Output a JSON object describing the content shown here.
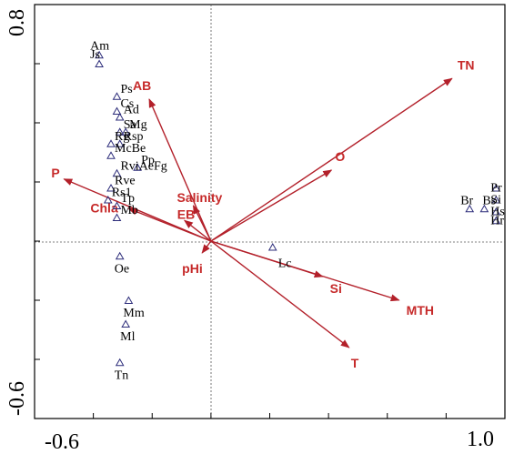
{
  "chart_data": {
    "type": "scatter",
    "title": "",
    "xlabel": "",
    "ylabel": "",
    "xlim": [
      -0.6,
      1.0
    ],
    "ylim": [
      -0.6,
      0.8
    ],
    "x_tick_labels": [
      "-0.6",
      "1.0"
    ],
    "y_tick_labels": [
      "0.8",
      "-0.6"
    ],
    "grid": false,
    "origin_lines": "dotted",
    "colors": {
      "arrow": "#b3202a",
      "species": "#2c2c7a",
      "env_label": "#c62a2a",
      "axis": "#000000"
    },
    "species": [
      {
        "label": "Am",
        "x": -0.38,
        "y": 0.63
      },
      {
        "label": "Js",
        "x": -0.38,
        "y": 0.6
      },
      {
        "label": "Ps",
        "x": -0.32,
        "y": 0.49
      },
      {
        "label": "Cs",
        "x": -0.32,
        "y": 0.44
      },
      {
        "label": "Ad",
        "x": -0.31,
        "y": 0.42
      },
      {
        "label": "Sa",
        "x": -0.31,
        "y": 0.37
      },
      {
        "label": "Mg",
        "x": -0.29,
        "y": 0.37
      },
      {
        "label": "Rg",
        "x": -0.34,
        "y": 0.33
      },
      {
        "label": "Rsp",
        "x": -0.31,
        "y": 0.33
      },
      {
        "label": "McBe",
        "x": -0.34,
        "y": 0.29
      },
      {
        "label": "Pp",
        "x": -0.25,
        "y": 0.25
      },
      {
        "label": "RviAeFg",
        "x": -0.32,
        "y": 0.23
      },
      {
        "label": "Rve",
        "x": -0.34,
        "y": 0.18
      },
      {
        "label": "Rs1",
        "x": -0.35,
        "y": 0.14
      },
      {
        "label": "Tp",
        "x": -0.32,
        "y": 0.12
      },
      {
        "label": "Mb",
        "x": -0.32,
        "y": 0.08
      },
      {
        "label": "Oe",
        "x": -0.31,
        "y": -0.05
      },
      {
        "label": "Lc",
        "x": 0.21,
        "y": -0.02
      },
      {
        "label": "Mm",
        "x": -0.28,
        "y": -0.2
      },
      {
        "label": "Ml",
        "x": -0.29,
        "y": -0.28
      },
      {
        "label": "Tn",
        "x": -0.31,
        "y": -0.41
      },
      {
        "label": "Pr",
        "x": 0.97,
        "y": 0.18
      },
      {
        "label": "Si",
        "x": 0.97,
        "y": 0.14
      },
      {
        "label": "Hs",
        "x": 0.97,
        "y": 0.1
      },
      {
        "label": "Hr",
        "x": 0.97,
        "y": 0.07
      },
      {
        "label": "Br",
        "x": 0.88,
        "y": 0.11
      },
      {
        "label": "Bs",
        "x": 0.93,
        "y": 0.11
      }
    ],
    "env_vectors": [
      {
        "label": "TN",
        "x": 0.82,
        "y": 0.55
      },
      {
        "label": "O",
        "x": 0.41,
        "y": 0.24
      },
      {
        "label": "AB",
        "x": -0.21,
        "y": 0.48
      },
      {
        "label": "P",
        "x": -0.5,
        "y": 0.21
      },
      {
        "label": "Chla",
        "x": -0.28,
        "y": 0.11
      },
      {
        "label": "Salinity",
        "x": -0.06,
        "y": 0.12
      },
      {
        "label": "EB",
        "x": -0.09,
        "y": 0.07
      },
      {
        "label": "pHi",
        "x": -0.03,
        "y": -0.04
      },
      {
        "label": "Si",
        "x": 0.38,
        "y": -0.12
      },
      {
        "label": "MTH",
        "x": 0.64,
        "y": -0.2
      },
      {
        "label": "T",
        "x": 0.47,
        "y": -0.36
      }
    ]
  }
}
